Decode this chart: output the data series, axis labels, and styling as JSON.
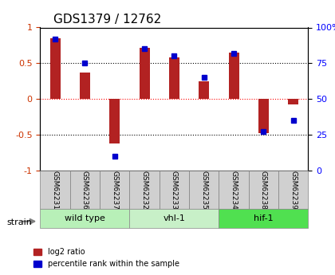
{
  "title": "GDS1379 / 12762",
  "samples": [
    "GSM62231",
    "GSM62236",
    "GSM62237",
    "GSM62232",
    "GSM62233",
    "GSM62235",
    "GSM62234",
    "GSM62238",
    "GSM62239"
  ],
  "log2_ratio": [
    0.85,
    0.37,
    -0.62,
    0.72,
    0.58,
    0.25,
    0.65,
    -0.48,
    -0.08
  ],
  "percentile": [
    92,
    75,
    10,
    85,
    80,
    65,
    82,
    27,
    35
  ],
  "groups": [
    {
      "label": "wild type",
      "start": 0,
      "end": 3,
      "color": "#b8f0b8"
    },
    {
      "label": "vhl-1",
      "start": 3,
      "end": 6,
      "color": "#c8f0c8"
    },
    {
      "label": "hif-1",
      "start": 6,
      "end": 9,
      "color": "#50e050"
    }
  ],
  "ylim_left": [
    -1,
    1
  ],
  "ylim_right": [
    0,
    100
  ],
  "yticks_left": [
    -1,
    -0.5,
    0,
    0.5,
    1
  ],
  "yticks_right": [
    0,
    25,
    50,
    75,
    100
  ],
  "bar_color": "#b22222",
  "dot_color": "#0000cd",
  "grid_color": "#000000",
  "bg_color": "#ffffff",
  "strain_label": "strain",
  "legend_log2": "log2 ratio",
  "legend_pct": "percentile rank within the sample"
}
